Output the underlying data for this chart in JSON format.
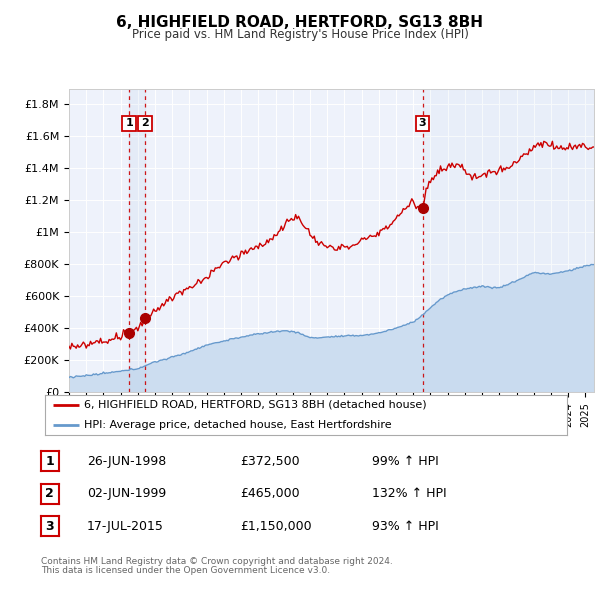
{
  "title": "6, HIGHFIELD ROAD, HERTFORD, SG13 8BH",
  "subtitle": "Price paid vs. HM Land Registry's House Price Index (HPI)",
  "legend_line1": "6, HIGHFIELD ROAD, HERTFORD, SG13 8BH (detached house)",
  "legend_line2": "HPI: Average price, detached house, East Hertfordshire",
  "footer1": "Contains HM Land Registry data © Crown copyright and database right 2024.",
  "footer2": "This data is licensed under the Open Government Licence v3.0.",
  "transactions": [
    {
      "num": 1,
      "date": "26-JUN-1998",
      "price": 372500,
      "hpi_pct": "99%",
      "arrow": "↑",
      "year": 1998.49
    },
    {
      "num": 2,
      "date": "02-JUN-1999",
      "price": 465000,
      "hpi_pct": "132%",
      "arrow": "↑",
      "year": 1999.42
    },
    {
      "num": 3,
      "date": "17-JUL-2015",
      "price": 1150000,
      "hpi_pct": "93%",
      "arrow": "↑",
      "year": 2015.54
    }
  ],
  "price_color": "#cc0000",
  "hpi_color": "#6699cc",
  "hpi_fill_color": "#ccddf0",
  "vline_color": "#cc0000",
  "plot_bg_color": "#eef2fb",
  "grid_color": "#ffffff",
  "ylim": [
    0,
    1900000
  ],
  "xlim_start": 1995.0,
  "xlim_end": 2025.5,
  "yticks": [
    0,
    200000,
    400000,
    600000,
    800000,
    1000000,
    1200000,
    1400000,
    1600000,
    1800000
  ],
  "ylabels": [
    "£0",
    "£200K",
    "£400K",
    "£600K",
    "£800K",
    "£1M",
    "£1.2M",
    "£1.4M",
    "£1.6M",
    "£1.8M"
  ]
}
